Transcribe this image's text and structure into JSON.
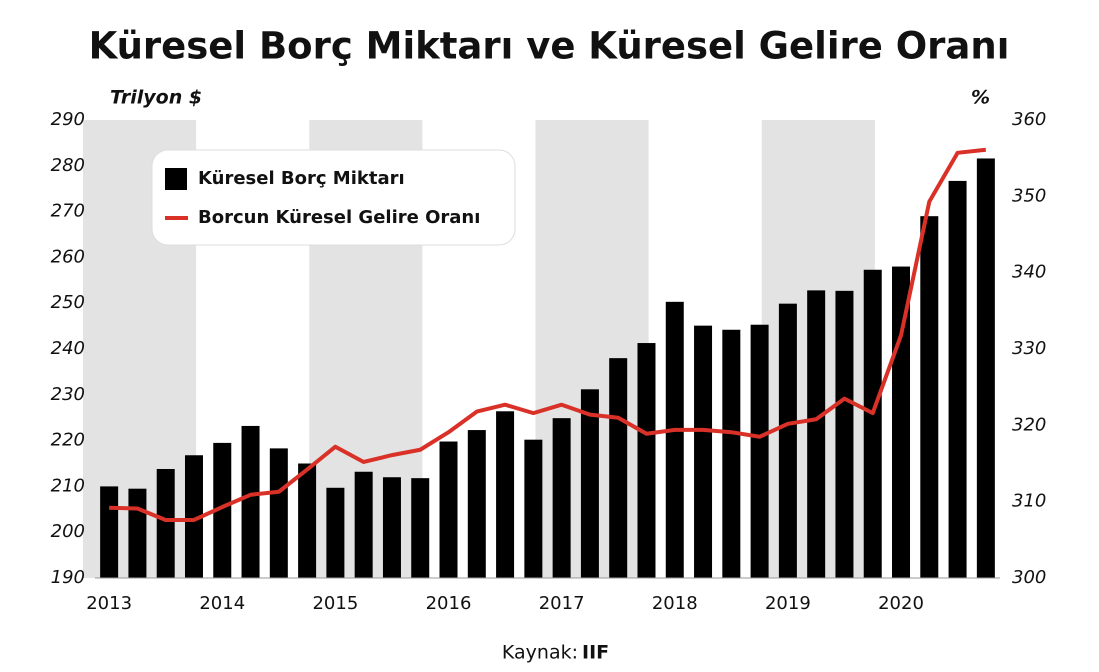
{
  "chart_data": {
    "type": "bar",
    "title": "Küresel Borç Miktarı ve Küresel Gelire Oranı",
    "y_axis_label": "Trilyon $",
    "y2_axis_label": "%",
    "source_label": "Kaynak:",
    "source_name": "IIF",
    "categories": [
      "2013",
      null,
      null,
      null,
      "2014",
      null,
      null,
      null,
      "2015",
      null,
      null,
      null,
      "2016",
      null,
      null,
      null,
      "2017",
      null,
      null,
      null,
      "2018",
      null,
      null,
      null,
      "2019",
      null,
      null,
      null,
      "2020",
      null,
      null,
      null
    ],
    "series": [
      {
        "name": "Küresel Borç Miktarı",
        "type": "bar",
        "color": "#000000",
        "values": [
          210,
          209.5,
          213.8,
          216.8,
          219.5,
          223.2,
          218.3,
          215,
          209.7,
          213.2,
          212,
          211.8,
          219.8,
          222.3,
          226.4,
          220.2,
          224.9,
          231.2,
          238,
          241.3,
          250.3,
          245.1,
          244.2,
          245.3,
          249.9,
          252.8,
          252.7,
          257.3,
          258,
          269,
          276.7,
          281.6
        ]
      },
      {
        "name": "Borcun Küresel Gelire Oranı",
        "type": "line",
        "color": "#d93127",
        "axis": "y2",
        "values": [
          309.2,
          309.1,
          307.6,
          307.6,
          309.3,
          310.9,
          311.3,
          314.2,
          317.2,
          315.2,
          316.1,
          316.8,
          319.1,
          321.8,
          322.7,
          321.6,
          322.7,
          321.4,
          321,
          318.9,
          319.4,
          319.4,
          319.1,
          318.5,
          320.2,
          320.8,
          323.5,
          321.6,
          331.8,
          349.3,
          355.7,
          356.1
        ]
      }
    ],
    "ylim": [
      190,
      290
    ],
    "yticks": [
      190,
      200,
      210,
      220,
      230,
      240,
      250,
      260,
      270,
      280,
      290
    ],
    "y2lim": [
      300,
      360
    ],
    "y2ticks": [
      300,
      310,
      320,
      330,
      340,
      350,
      360
    ],
    "grid": false,
    "legend": "upper left"
  }
}
